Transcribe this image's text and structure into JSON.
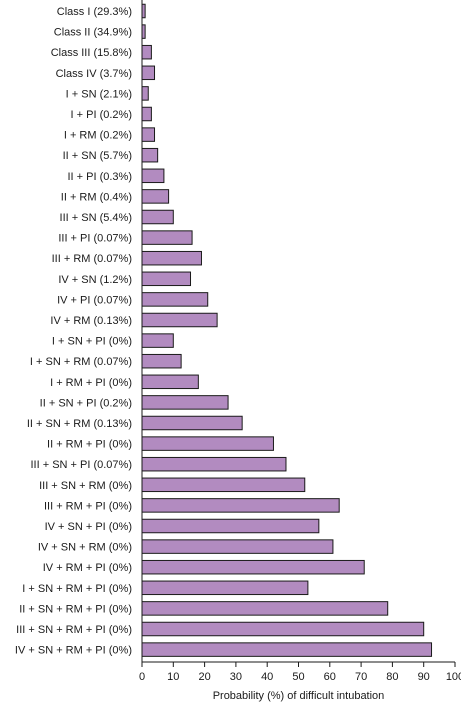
{
  "chart_data": {
    "type": "bar",
    "orientation": "horizontal",
    "categories": [
      "Class I (29.3%)",
      "Class II (34.9%)",
      "Class III (15.8%)",
      "Class IV (3.7%)",
      "I + SN (2.1%)",
      "I + PI (0.2%)",
      "I + RM (0.2%)",
      "II + SN (5.7%)",
      "II + PI (0.3%)",
      "II + RM (0.4%)",
      "III + SN (5.4%)",
      "III + PI (0.07%)",
      "III + RM (0.07%)",
      "IV + SN (1.2%)",
      "IV + PI (0.07%)",
      "IV + RM (0.13%)",
      "I + SN + PI (0%)",
      "I + SN + RM (0.07%)",
      "I + RM + PI (0%)",
      "II + SN + PI (0.2%)",
      "II + SN + RM (0.13%)",
      "II + RM + PI (0%)",
      "III + SN + PI (0.07%)",
      "III + SN + RM (0%)",
      "III + RM + PI (0%)",
      "IV + SN + PI (0%)",
      "IV + SN + RM (0%)",
      "IV + RM + PI (0%)",
      "I + SN + RM + PI (0%)",
      "II + SN + RM + PI (0%)",
      "III + SN + RM + PI (0%)",
      "IV + SN + RM + PI (0%)"
    ],
    "values": [
      1,
      1,
      3,
      4,
      2,
      3,
      4,
      5,
      7,
      8.5,
      10,
      16,
      19,
      15.5,
      21,
      24,
      10,
      12.5,
      18,
      27.5,
      32,
      42,
      46,
      52,
      63,
      56.5,
      61,
      71,
      53,
      78.5,
      90,
      92.5
    ],
    "xlabel": "Probability (%) of difficult intubation",
    "ylabel": "",
    "xlim": [
      0,
      100
    ],
    "xticks": [
      "0",
      "10",
      "20",
      "30",
      "40",
      "50",
      "60",
      "70",
      "80",
      "90",
      "100"
    ],
    "grid": false,
    "legend": "none",
    "bar_color": "#b28bc0",
    "bar_edge_color": "#1a1a1a"
  }
}
